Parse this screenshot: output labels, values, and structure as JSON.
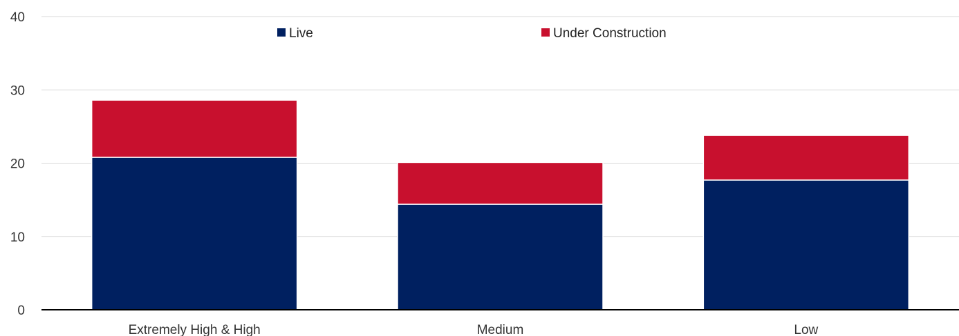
{
  "chart_data": {
    "type": "bar",
    "stacked": true,
    "categories": [
      "Extremely High & High",
      "Medium",
      "Low"
    ],
    "series": [
      {
        "name": "Live",
        "values": [
          20.8,
          14.4,
          17.7
        ],
        "color": "#002060"
      },
      {
        "name": "Under Construction",
        "values": [
          7.8,
          5.7,
          6.1
        ],
        "color": "#c8102e"
      }
    ],
    "title": "",
    "xlabel": "",
    "ylabel": "",
    "ylim": [
      0,
      40
    ],
    "yticks": [
      0,
      10,
      20,
      30,
      40
    ],
    "grid": true,
    "legend_position": "top-center"
  }
}
